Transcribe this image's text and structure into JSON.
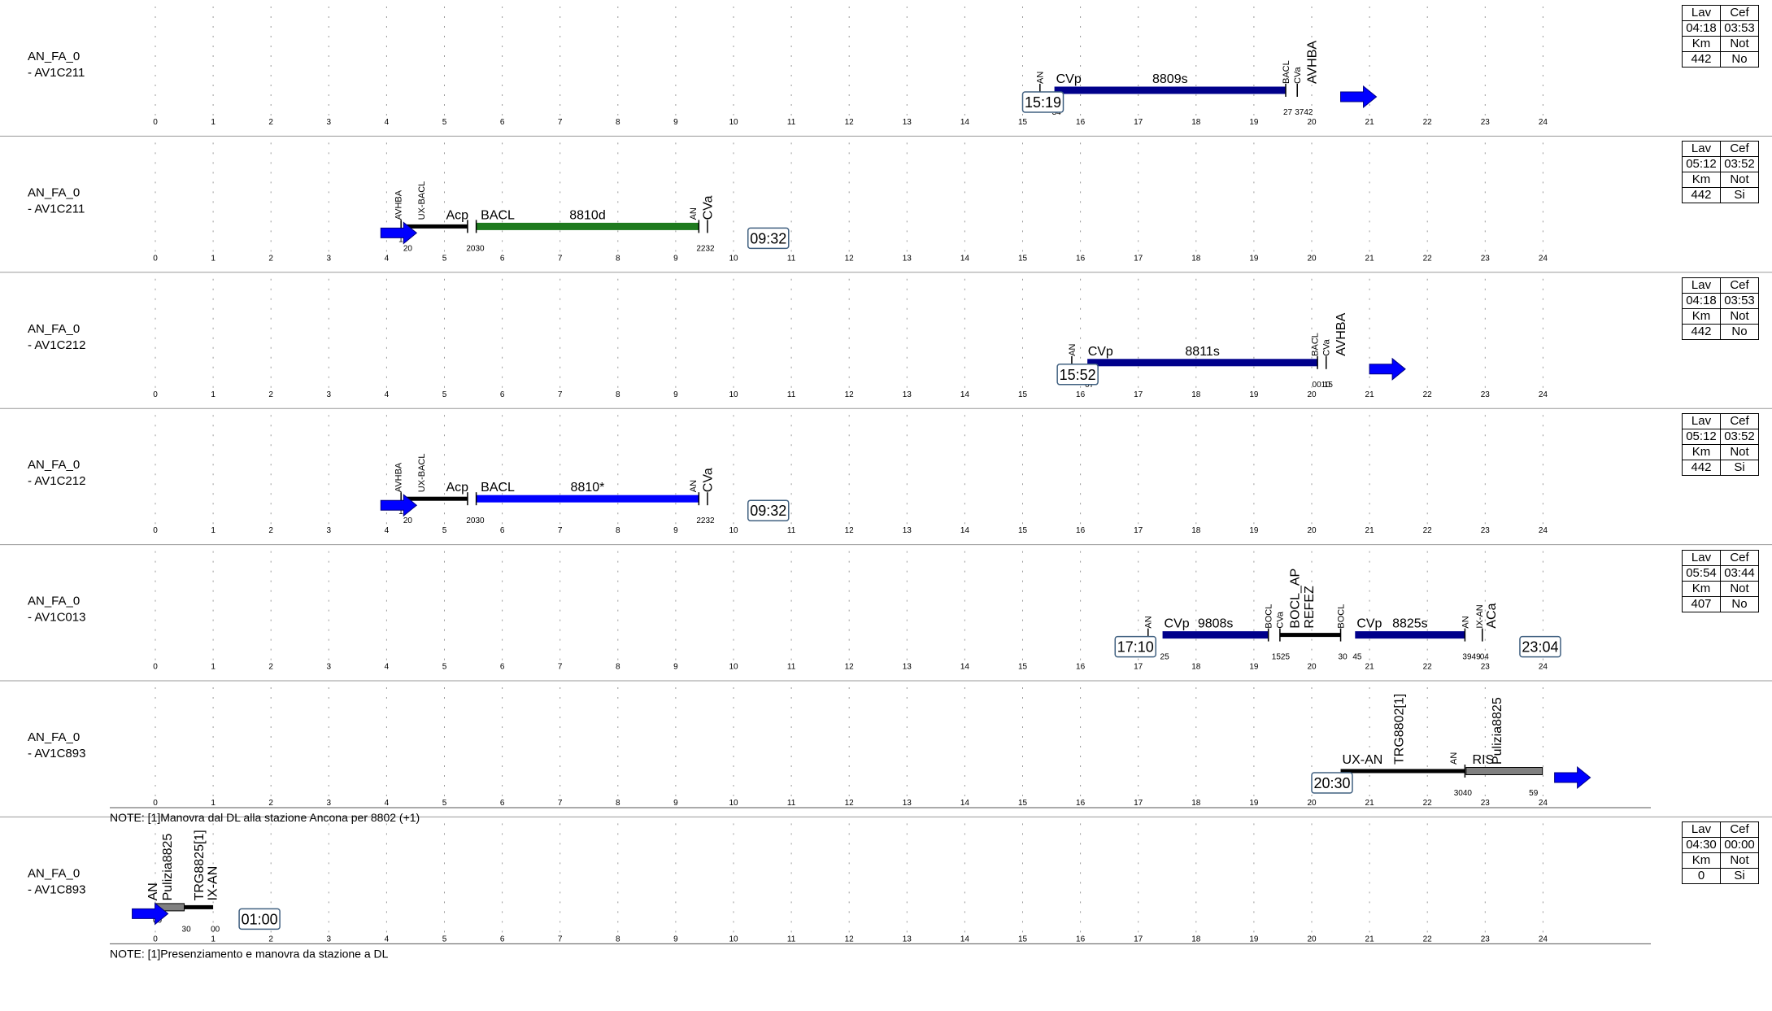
{
  "hours": [
    "0",
    "1",
    "2",
    "3",
    "4",
    "5",
    "6",
    "7",
    "8",
    "9",
    "10",
    "11",
    "12",
    "13",
    "14",
    "15",
    "16",
    "17",
    "18",
    "19",
    "20",
    "21",
    "22",
    "23",
    "24"
  ],
  "colors": {
    "green": "#1e7a1e",
    "blue": "#0000ff",
    "navy": "#00008b",
    "black": "#000000",
    "gray": "#808080",
    "arrow": "#0000ff"
  },
  "panels": [
    {
      "label1": "AN_FA_0",
      "label2": "- AV1C211",
      "table": {
        "h1": "Lav",
        "h2": "Cef",
        "v1": "04:18",
        "v2": "03:53",
        "h3": "Km",
        "h4": "Not",
        "v3": "442",
        "v4": "No"
      },
      "time_box": {
        "text": "15:19",
        "hour": 15.0
      },
      "arrow": {
        "hour": 20.5
      },
      "segments": [
        {
          "start": 15.55,
          "end": 19.55,
          "color": "navy",
          "label": "8809s"
        }
      ],
      "labels": [
        {
          "text": "CVp",
          "hour": 15.55,
          "size": "med"
        },
        {
          "text": "AN",
          "hour": 15.3,
          "size": "small",
          "vertical": true
        },
        {
          "text": "BACL",
          "hour": 19.55,
          "size": "small",
          "vertical": true
        },
        {
          "text": "CVa",
          "hour": 19.75,
          "size": "small",
          "vertical": true
        },
        {
          "text": "AVHBA",
          "hour": 20.0,
          "size": "med",
          "vertical": true
        }
      ],
      "minutes": [
        {
          "text": "19",
          "hour": 15.3,
          "row": 1
        },
        {
          "text": "34",
          "hour": 15.55,
          "row": 2
        },
        {
          "text": "27",
          "hour": 19.55,
          "row": 2
        },
        {
          "text": "3742",
          "hour": 19.75,
          "row": 2
        }
      ],
      "ticks": [
        15.3,
        19.55,
        19.75
      ]
    },
    {
      "label1": "AN_FA_0",
      "label2": "- AV1C211",
      "table": {
        "h1": "Lav",
        "h2": "Cef",
        "v1": "05:12",
        "v2": "03:52",
        "h3": "Km",
        "h4": "Not",
        "v3": "442",
        "v4": "Si"
      },
      "time_box": {
        "text": "09:32",
        "hour": 10.25
      },
      "arrow": {
        "hour": 3.9
      },
      "segments": [
        {
          "start": 4.33,
          "end": 5.4,
          "color": "black",
          "label": ""
        },
        {
          "start": 5.55,
          "end": 9.4,
          "color": "green",
          "label": "8810d"
        }
      ],
      "labels": [
        {
          "text": "AVHBA",
          "hour": 4.2,
          "size": "small",
          "vertical": true
        },
        {
          "text": "UX-BACL",
          "hour": 4.6,
          "size": "small",
          "vertical": true
        },
        {
          "text": "Acp",
          "hour": 5.0,
          "size": "med"
        },
        {
          "text": "BACL",
          "hour": 5.6,
          "size": "med"
        },
        {
          "text": "AN",
          "hour": 9.3,
          "size": "small",
          "vertical": true
        },
        {
          "text": "CVa",
          "hour": 9.55,
          "size": "med",
          "vertical": true
        }
      ],
      "minutes": [
        {
          "text": "15",
          "hour": 4.25,
          "row": 1
        },
        {
          "text": "20",
          "hour": 4.33,
          "row": 2
        },
        {
          "text": "2030",
          "hour": 5.42,
          "row": 2
        },
        {
          "text": "2232",
          "hour": 9.4,
          "row": 2
        }
      ],
      "ticks": [
        4.25,
        5.4,
        5.55,
        9.4,
        9.55
      ]
    },
    {
      "label1": "AN_FA_0",
      "label2": "- AV1C212",
      "table": {
        "h1": "Lav",
        "h2": "Cef",
        "v1": "04:18",
        "v2": "03:53",
        "h3": "Km",
        "h4": "Not",
        "v3": "442",
        "v4": "No"
      },
      "time_box": {
        "text": "15:52",
        "hour": 15.6
      },
      "arrow": {
        "hour": 21.0
      },
      "segments": [
        {
          "start": 16.12,
          "end": 20.1,
          "color": "navy",
          "label": "8811s"
        }
      ],
      "labels": [
        {
          "text": "CVp",
          "hour": 16.1,
          "size": "med"
        },
        {
          "text": "AN",
          "hour": 15.85,
          "size": "small",
          "vertical": true
        },
        {
          "text": "BACL",
          "hour": 20.05,
          "size": "small",
          "vertical": true
        },
        {
          "text": "CVa",
          "hour": 20.25,
          "size": "small",
          "vertical": true
        },
        {
          "text": "AVHBA",
          "hour": 20.5,
          "size": "med",
          "vertical": true
        }
      ],
      "minutes": [
        {
          "text": "52",
          "hour": 15.85,
          "row": 1
        },
        {
          "text": "07",
          "hour": 16.12,
          "row": 2
        },
        {
          "text": "0010",
          "hour": 20.05,
          "row": 2
        },
        {
          "text": "15",
          "hour": 20.25,
          "row": 2
        }
      ],
      "ticks": [
        15.85,
        20.1,
        20.25
      ]
    },
    {
      "label1": "AN_FA_0",
      "label2": "- AV1C212",
      "table": {
        "h1": "Lav",
        "h2": "Cef",
        "v1": "05:12",
        "v2": "03:52",
        "h3": "Km",
        "h4": "Not",
        "v3": "442",
        "v4": "Si"
      },
      "time_box": {
        "text": "09:32",
        "hour": 10.25
      },
      "arrow": {
        "hour": 3.9
      },
      "segments": [
        {
          "start": 4.33,
          "end": 5.4,
          "color": "black",
          "label": ""
        },
        {
          "start": 5.55,
          "end": 9.4,
          "color": "blue",
          "label": "8810*"
        }
      ],
      "labels": [
        {
          "text": "AVHBA",
          "hour": 4.2,
          "size": "small",
          "vertical": true
        },
        {
          "text": "UX-BACL",
          "hour": 4.6,
          "size": "small",
          "vertical": true
        },
        {
          "text": "Acp",
          "hour": 5.0,
          "size": "med"
        },
        {
          "text": "BACL",
          "hour": 5.6,
          "size": "med"
        },
        {
          "text": "AN",
          "hour": 9.3,
          "size": "small",
          "vertical": true
        },
        {
          "text": "CVa",
          "hour": 9.55,
          "size": "med",
          "vertical": true
        }
      ],
      "minutes": [
        {
          "text": "15",
          "hour": 4.25,
          "row": 1
        },
        {
          "text": "20",
          "hour": 4.33,
          "row": 2
        },
        {
          "text": "2030",
          "hour": 5.42,
          "row": 2
        },
        {
          "text": "2232",
          "hour": 9.4,
          "row": 2
        }
      ],
      "ticks": [
        4.25,
        5.4,
        5.55,
        9.4,
        9.55
      ]
    },
    {
      "label1": "AN_FA_0",
      "label2": "- AV1C013",
      "table": {
        "h1": "Lav",
        "h2": "Cef",
        "v1": "05:54",
        "v2": "03:44",
        "h3": "Km",
        "h4": "Not",
        "v3": "407",
        "v4": "No"
      },
      "time_box": {
        "text": "17:10",
        "hour": 16.6
      },
      "time_box2": {
        "text": "23:04",
        "hour": 23.6
      },
      "arrow": null,
      "segments": [
        {
          "start": 17.42,
          "end": 19.25,
          "color": "navy",
          "label": "9808s"
        },
        {
          "start": 19.45,
          "end": 20.5,
          "color": "black",
          "label": ""
        },
        {
          "start": 20.75,
          "end": 22.65,
          "color": "navy",
          "label": "8825s"
        }
      ],
      "labels": [
        {
          "text": "AN",
          "hour": 17.17,
          "size": "small",
          "vertical": true
        },
        {
          "text": "CVp",
          "hour": 17.42,
          "size": "med"
        },
        {
          "text": "BOCL",
          "hour": 19.25,
          "size": "small",
          "vertical": true
        },
        {
          "text": "CVa",
          "hour": 19.45,
          "size": "small",
          "vertical": true
        },
        {
          "text": "BOCL_AP",
          "hour": 19.7,
          "size": "med",
          "vertical": true
        },
        {
          "text": "REFEZ",
          "hour": 19.95,
          "size": "med",
          "vertical": true
        },
        {
          "text": "BOCL",
          "hour": 20.5,
          "size": "small",
          "vertical": true
        },
        {
          "text": "CVp",
          "hour": 20.75,
          "size": "med"
        },
        {
          "text": "AN",
          "hour": 22.65,
          "size": "small",
          "vertical": true
        },
        {
          "text": "IX-AN",
          "hour": 22.9,
          "size": "small",
          "vertical": true
        },
        {
          "text": "ACa",
          "hour": 23.1,
          "size": "med",
          "vertical": true
        }
      ],
      "minutes": [
        {
          "text": "10",
          "hour": 17.17,
          "row": 1
        },
        {
          "text": "25",
          "hour": 17.42,
          "row": 2
        },
        {
          "text": "1525",
          "hour": 19.35,
          "row": 2
        },
        {
          "text": "30",
          "hour": 20.5,
          "row": 2
        },
        {
          "text": "45",
          "hour": 20.75,
          "row": 2
        },
        {
          "text": "3949",
          "hour": 22.65,
          "row": 2
        },
        {
          "text": "04",
          "hour": 22.95,
          "row": 2
        }
      ],
      "ticks": [
        17.17,
        19.25,
        19.45,
        20.5,
        22.65,
        22.95
      ]
    },
    {
      "label1": "AN_FA_0",
      "label2": "- AV1C893",
      "table": null,
      "note": "NOTE: [1]Manovra dal DL alla stazione Ancona per 8802 (+1)",
      "time_box": {
        "text": "20:30",
        "hour": 20.0
      },
      "arrow": {
        "hour": 24.2
      },
      "segments": [
        {
          "start": 20.5,
          "end": 22.65,
          "color": "black",
          "label": ""
        },
        {
          "start": 22.67,
          "end": 23.99,
          "color": "gray",
          "label": ""
        }
      ],
      "labels": [
        {
          "text": "UX-AN",
          "hour": 20.5,
          "size": "med"
        },
        {
          "text": "TRG8802[1]",
          "hour": 21.5,
          "size": "med",
          "vertical": true
        },
        {
          "text": "AN",
          "hour": 22.45,
          "size": "small",
          "vertical": true
        },
        {
          "text": "RIS",
          "hour": 22.75,
          "size": "med"
        },
        {
          "text": "Pulizia8825",
          "hour": 23.2,
          "size": "med",
          "vertical": true
        }
      ],
      "minutes": [
        {
          "text": "30",
          "hour": 20.5,
          "row": 1
        },
        {
          "text": "3040",
          "hour": 22.5,
          "row": 2
        },
        {
          "text": "59",
          "hour": 23.8,
          "row": 2
        }
      ],
      "ticks": [
        22.65
      ]
    },
    {
      "label1": "AN_FA_0",
      "label2": "- AV1C893",
      "table": {
        "h1": "Lav",
        "h2": "Cef",
        "v1": "04:30",
        "v2": "00:00",
        "h3": "Km",
        "h4": "Not",
        "v3": "0",
        "v4": "Si"
      },
      "note": "NOTE: [1]Presenziamento e manovra da stazione a DL",
      "time_box": {
        "text": "01:00",
        "hour": 1.45
      },
      "arrow": {
        "hour": -0.4
      },
      "segments": [
        {
          "start": 0.0,
          "end": 0.5,
          "color": "gray",
          "label": ""
        },
        {
          "start": 0.5,
          "end": 1.0,
          "color": "black",
          "label": ""
        }
      ],
      "labels": [
        {
          "text": "AN",
          "hour": -0.05,
          "size": "med",
          "vertical": true
        },
        {
          "text": "Pulizia8825",
          "hour": 0.2,
          "size": "med",
          "vertical": true
        },
        {
          "text": "TRG8825[1]",
          "hour": 0.75,
          "size": "med",
          "vertical": true
        },
        {
          "text": "IX-AN",
          "hour": 0.98,
          "size": "med",
          "vertical": true
        }
      ],
      "minutes": [
        {
          "text": "00",
          "hour": 0.0,
          "row": 1
        },
        {
          "text": "30",
          "hour": 0.5,
          "row": 2
        },
        {
          "text": "00",
          "hour": 1.0,
          "row": 2
        }
      ],
      "ticks": []
    }
  ]
}
